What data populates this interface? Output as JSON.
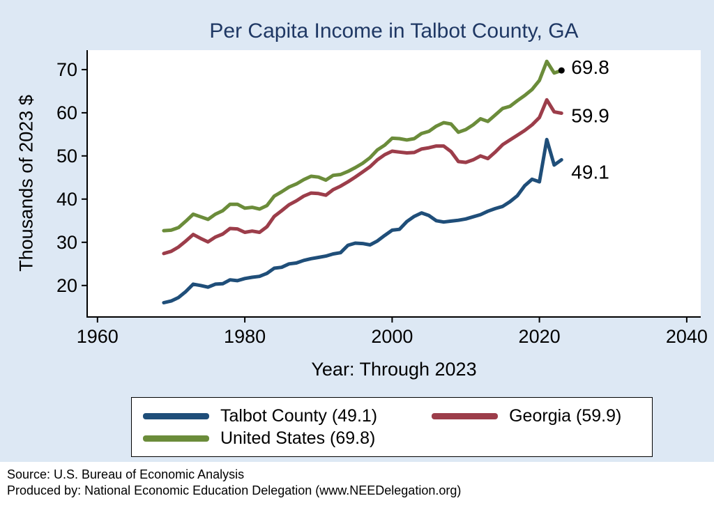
{
  "title": "Per Capita Income in Talbot County, GA",
  "ylabel": "Thousands of 2023 $",
  "xlabel": "Year: Through 2023",
  "legend": {
    "items": [
      {
        "label": "Talbot County (49.1)",
        "color": "#1f4e79"
      },
      {
        "label": "Georgia (59.9)",
        "color": "#9c3d4a"
      },
      {
        "label": "United States (69.8)",
        "color": "#6b8c3a"
      }
    ]
  },
  "footer": {
    "line1": "Source: U.S. Bureau of Economic Analysis",
    "line2": "Produced by: National Economic Education Delegation (www.NEEDelegation.org)"
  },
  "colors": {
    "background": "#dde8f4",
    "plot_background": "#ffffff",
    "title": "#1f3864",
    "axis": "#000000"
  },
  "chart_data": {
    "type": "line",
    "title": "Per Capita Income in Talbot County, GA",
    "xlabel": "Year: Through 2023",
    "ylabel": "Thousands of 2023 $",
    "grid": false,
    "legend_position": "bottom",
    "xticks": [
      1960,
      1980,
      2000,
      2020,
      2040
    ],
    "yticks": [
      20,
      30,
      40,
      50,
      60,
      70
    ],
    "xlim": [
      1958.6,
      2041.9
    ],
    "ylim": [
      12.7,
      74.5
    ],
    "x": [
      1969,
      1970,
      1971,
      1972,
      1973,
      1974,
      1975,
      1976,
      1977,
      1978,
      1979,
      1980,
      1981,
      1982,
      1983,
      1984,
      1985,
      1986,
      1987,
      1988,
      1989,
      1990,
      1991,
      1992,
      1993,
      1994,
      1995,
      1996,
      1997,
      1998,
      1999,
      2000,
      2001,
      2002,
      2003,
      2004,
      2005,
      2006,
      2007,
      2008,
      2009,
      2010,
      2011,
      2012,
      2013,
      2014,
      2015,
      2016,
      2017,
      2018,
      2019,
      2020,
      2021,
      2022,
      2023
    ],
    "series": [
      {
        "name": "Talbot County",
        "color": "#1f4e79",
        "end_label": "49.1",
        "end_dot": false,
        "values": [
          16.0,
          16.4,
          17.2,
          18.6,
          20.3,
          20.0,
          19.6,
          20.3,
          20.4,
          21.3,
          21.1,
          21.6,
          21.9,
          22.1,
          22.8,
          24.0,
          24.2,
          25.0,
          25.2,
          25.8,
          26.2,
          26.5,
          26.8,
          27.3,
          27.6,
          29.3,
          29.8,
          29.7,
          29.4,
          30.3,
          31.6,
          32.8,
          33.0,
          34.8,
          36.0,
          36.8,
          36.2,
          35.0,
          34.7,
          34.9,
          35.1,
          35.4,
          35.9,
          36.4,
          37.2,
          37.8,
          38.3,
          39.4,
          40.8,
          43.1,
          44.6,
          44.0,
          53.8,
          47.9,
          49.1
        ]
      },
      {
        "name": "Georgia",
        "color": "#9c3d4a",
        "end_label": "59.9",
        "end_dot": false,
        "values": [
          27.4,
          27.9,
          28.9,
          30.3,
          31.8,
          30.9,
          30.1,
          31.2,
          31.9,
          33.2,
          33.1,
          32.3,
          32.6,
          32.3,
          33.6,
          36.0,
          37.3,
          38.7,
          39.6,
          40.7,
          41.4,
          41.3,
          40.9,
          42.2,
          43.0,
          44.0,
          45.1,
          46.3,
          47.5,
          49.1,
          50.3,
          51.1,
          50.9,
          50.7,
          50.8,
          51.6,
          51.9,
          52.3,
          52.3,
          51.0,
          48.7,
          48.5,
          49.1,
          50.0,
          49.4,
          50.9,
          52.6,
          53.7,
          54.8,
          55.9,
          57.2,
          58.9,
          63.0,
          60.2,
          59.9
        ]
      },
      {
        "name": "United States",
        "color": "#6b8c3a",
        "end_label": "69.8",
        "end_dot": true,
        "values": [
          32.7,
          32.8,
          33.4,
          34.9,
          36.5,
          35.9,
          35.3,
          36.5,
          37.3,
          38.8,
          38.8,
          37.9,
          38.1,
          37.7,
          38.5,
          40.7,
          41.7,
          42.8,
          43.5,
          44.5,
          45.3,
          45.1,
          44.4,
          45.5,
          45.7,
          46.4,
          47.3,
          48.3,
          49.6,
          51.4,
          52.5,
          54.1,
          54.0,
          53.7,
          54.0,
          55.2,
          55.7,
          56.9,
          57.7,
          57.4,
          55.5,
          56.1,
          57.2,
          58.6,
          58.0,
          59.5,
          61.0,
          61.5,
          62.8,
          64.0,
          65.4,
          67.5,
          71.9,
          69.2,
          69.8
        ]
      }
    ]
  }
}
